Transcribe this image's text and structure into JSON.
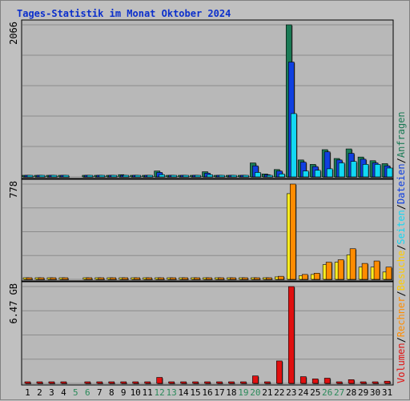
{
  "title": "Tages-Statistik im Monat Oktober 2024",
  "colors": {
    "background": "#c0c0c0",
    "plot_bg": "#b8b8b8",
    "grid": "#8c8c8c",
    "title": "#0b2fcc",
    "anfragen": "#1a7a55",
    "dateien": "#1040e0",
    "seiten": "#12d8f4",
    "besuche": "#ffee22",
    "rechner": "#ff8c00",
    "volumen": "#e01010",
    "weekend": "#2a8a5a",
    "separator": "#000000"
  },
  "legends": {
    "top": [
      {
        "text": "Anfragen",
        "color": "#1a7a55"
      },
      {
        "text": "/",
        "color": "#000000"
      },
      {
        "text": "Dateien",
        "color": "#1040e0"
      },
      {
        "text": "/",
        "color": "#000000"
      },
      {
        "text": "Seiten",
        "color": "#12d8f4"
      },
      {
        "text": "/",
        "color": "#000000"
      },
      {
        "text": "Besuche",
        "color": "#ffcc00"
      },
      {
        "text": "/",
        "color": "#000000"
      },
      {
        "text": "Rechner",
        "color": "#ff8c00"
      },
      {
        "text": "/",
        "color": "#000000"
      },
      {
        "text": "Volumen",
        "color": "#e01010"
      }
    ]
  },
  "chart_data": {
    "type": "bar",
    "title": "Tages-Statistik im Monat Oktober 2024",
    "grid": true,
    "categories": [
      "1",
      "2",
      "3",
      "4",
      "5",
      "6",
      "7",
      "8",
      "9",
      "10",
      "11",
      "12",
      "13",
      "14",
      "15",
      "16",
      "17",
      "18",
      "19",
      "20",
      "21",
      "22",
      "23",
      "24",
      "25",
      "26",
      "27",
      "28",
      "29",
      "30",
      "31"
    ],
    "weekend_days": [
      "5",
      "6",
      "12",
      "13",
      "19",
      "20",
      "26",
      "27"
    ],
    "panels": [
      {
        "id": "hits",
        "max_label": "2066",
        "ylim": [
          0,
          2066
        ],
        "series": [
          {
            "name": "Anfragen",
            "color": "#1a7a55",
            "values": [
              2,
              2,
              2,
              2,
              0,
              20,
              2,
              2,
              30,
              2,
              2,
              80,
              20,
              2,
              2,
              70,
              2,
              2,
              20,
              190,
              40,
              100,
              2066,
              230,
              170,
              370,
              250,
              380,
              270,
              220,
              180
            ]
          },
          {
            "name": "Dateien",
            "color": "#1040e0",
            "values": [
              1,
              1,
              1,
              1,
              0,
              15,
              1,
              1,
              20,
              1,
              1,
              60,
              15,
              1,
              1,
              50,
              1,
              1,
              15,
              150,
              30,
              80,
              1560,
              200,
              140,
              340,
              230,
              320,
              240,
              190,
              150
            ]
          },
          {
            "name": "Seiten",
            "color": "#12d8f4",
            "values": [
              1,
              1,
              1,
              1,
              0,
              5,
              1,
              1,
              10,
              1,
              1,
              30,
              5,
              1,
              1,
              30,
              1,
              1,
              5,
              60,
              15,
              40,
              860,
              80,
              90,
              110,
              190,
              210,
              170,
              170,
              120
            ]
          }
        ]
      },
      {
        "id": "visits",
        "max_label": "778",
        "ylim": [
          0,
          778
        ],
        "series": [
          {
            "name": "Besuche",
            "color": "#ffee22",
            "values": [
              2,
              2,
              2,
              2,
              0,
              2,
              2,
              2,
              2,
              2,
              2,
              10,
              5,
              2,
              2,
              5,
              2,
              2,
              5,
              10,
              10,
              20,
              700,
              30,
              40,
              120,
              140,
              200,
              100,
              100,
              60
            ]
          },
          {
            "name": "Rechner",
            "color": "#ff8c00",
            "values": [
              2,
              2,
              2,
              2,
              0,
              2,
              2,
              2,
              2,
              2,
              2,
              12,
              6,
              2,
              2,
              6,
              2,
              2,
              6,
              12,
              12,
              25,
              778,
              40,
              50,
              140,
              160,
              250,
              130,
              150,
              100
            ]
          }
        ]
      },
      {
        "id": "volume",
        "max_label": "6.47 GB",
        "ylim": [
          0,
          6.47
        ],
        "series": [
          {
            "name": "Volumen",
            "color": "#e01010",
            "values": [
              0.01,
              0.01,
              0.01,
              0.01,
              0,
              0.01,
              0.01,
              0.01,
              0.01,
              0.01,
              0.01,
              0.4,
              0.05,
              0.01,
              0.01,
              0.05,
              0.01,
              0.01,
              0.05,
              0.5,
              0.1,
              1.5,
              6.47,
              0.45,
              0.3,
              0.35,
              0.1,
              0.25,
              0.1,
              0.1,
              0.15
            ]
          }
        ]
      }
    ]
  }
}
